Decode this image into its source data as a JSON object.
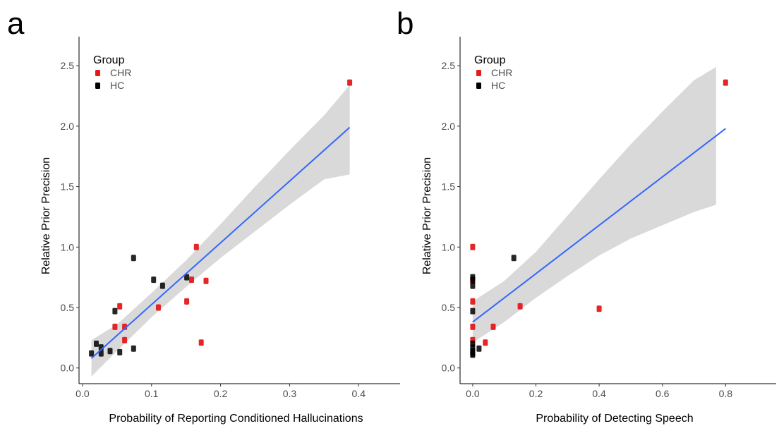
{
  "chart_data": [
    {
      "panel": "a",
      "type": "scatter",
      "title": "",
      "xlabel": "Probability of Reporting Conditioned Hallucinations",
      "ylabel": "Relative Prior Precision",
      "xlim": [
        -0.005,
        0.46
      ],
      "ylim": [
        -0.13,
        2.74
      ],
      "xticks": [
        0.0,
        0.1,
        0.2,
        0.3,
        0.4
      ],
      "xtick_labels": [
        "0.0",
        "0.1",
        "0.2",
        "0.3",
        "0.4"
      ],
      "yticks": [
        0.0,
        0.5,
        1.0,
        1.5,
        2.0,
        2.5
      ],
      "ytick_labels": [
        "0.0",
        "0.5",
        "1.0",
        "1.5",
        "2.0",
        "2.5"
      ],
      "grid": false,
      "legend": {
        "title": "Group",
        "position": "top-left",
        "entries": [
          {
            "label": "CHR",
            "color": "#e41a1c"
          },
          {
            "label": "HC",
            "color": "#000000"
          }
        ]
      },
      "series": [
        {
          "name": "CHR",
          "color": "#e41a1c",
          "points": [
            {
              "x": 0.387,
              "y": 2.36
            },
            {
              "x": 0.165,
              "y": 1.0
            },
            {
              "x": 0.179,
              "y": 0.72
            },
            {
              "x": 0.158,
              "y": 0.73
            },
            {
              "x": 0.151,
              "y": 0.55
            },
            {
              "x": 0.11,
              "y": 0.5
            },
            {
              "x": 0.054,
              "y": 0.51
            },
            {
              "x": 0.047,
              "y": 0.34
            },
            {
              "x": 0.061,
              "y": 0.34
            },
            {
              "x": 0.061,
              "y": 0.23
            },
            {
              "x": 0.172,
              "y": 0.21
            }
          ]
        },
        {
          "name": "HC",
          "color": "#000000",
          "points": [
            {
              "x": 0.074,
              "y": 0.91
            },
            {
              "x": 0.151,
              "y": 0.75
            },
            {
              "x": 0.103,
              "y": 0.73
            },
            {
              "x": 0.116,
              "y": 0.68
            },
            {
              "x": 0.047,
              "y": 0.47
            },
            {
              "x": 0.02,
              "y": 0.2
            },
            {
              "x": 0.027,
              "y": 0.17
            },
            {
              "x": 0.074,
              "y": 0.16
            },
            {
              "x": 0.04,
              "y": 0.14
            },
            {
              "x": 0.054,
              "y": 0.13
            },
            {
              "x": 0.013,
              "y": 0.12
            },
            {
              "x": 0.027,
              "y": 0.12
            }
          ]
        }
      ],
      "fit": {
        "x": [
          0.013,
          0.387
        ],
        "y": [
          0.08,
          1.99
        ]
      },
      "ci_band": {
        "x": [
          0.013,
          0.05,
          0.1,
          0.15,
          0.2,
          0.25,
          0.3,
          0.35,
          0.387
        ],
        "upper": [
          0.23,
          0.36,
          0.62,
          0.89,
          1.19,
          1.5,
          1.8,
          2.09,
          2.34
        ],
        "lower": [
          -0.07,
          0.14,
          0.42,
          0.67,
          0.91,
          1.13,
          1.35,
          1.56,
          1.6
        ]
      }
    },
    {
      "panel": "b",
      "type": "scatter",
      "title": "",
      "xlabel": "Probability of Detecting Speech",
      "ylabel": "Relative Prior Precision",
      "xlim": [
        -0.04,
        0.96
      ],
      "ylim": [
        -0.13,
        2.74
      ],
      "xticks": [
        0.0,
        0.2,
        0.4,
        0.6,
        0.8
      ],
      "xtick_labels": [
        "0.0",
        "0.2",
        "0.4",
        "0.6",
        "0.8"
      ],
      "yticks": [
        0.0,
        0.5,
        1.0,
        1.5,
        2.0,
        2.5
      ],
      "ytick_labels": [
        "0.0",
        "0.5",
        "1.0",
        "1.5",
        "2.0",
        "2.5"
      ],
      "grid": false,
      "legend": {
        "title": "Group",
        "position": "top-left",
        "entries": [
          {
            "label": "CHR",
            "color": "#e41a1c"
          },
          {
            "label": "HC",
            "color": "#000000"
          }
        ]
      },
      "series": [
        {
          "name": "CHR",
          "color": "#e41a1c",
          "points": [
            {
              "x": 0.8,
              "y": 2.36
            },
            {
              "x": 0.0,
              "y": 1.0
            },
            {
              "x": 0.0,
              "y": 0.73
            },
            {
              "x": 0.0,
              "y": 0.72
            },
            {
              "x": 0.0,
              "y": 0.55
            },
            {
              "x": 0.15,
              "y": 0.51
            },
            {
              "x": 0.4,
              "y": 0.49
            },
            {
              "x": 0.0,
              "y": 0.34
            },
            {
              "x": 0.065,
              "y": 0.34
            },
            {
              "x": 0.0,
              "y": 0.23
            },
            {
              "x": 0.04,
              "y": 0.21
            }
          ]
        },
        {
          "name": "HC",
          "color": "#000000",
          "points": [
            {
              "x": 0.13,
              "y": 0.91
            },
            {
              "x": 0.0,
              "y": 0.75
            },
            {
              "x": 0.0,
              "y": 0.73
            },
            {
              "x": 0.0,
              "y": 0.68
            },
            {
              "x": 0.0,
              "y": 0.47
            },
            {
              "x": 0.0,
              "y": 0.2
            },
            {
              "x": 0.0,
              "y": 0.17
            },
            {
              "x": 0.02,
              "y": 0.16
            },
            {
              "x": 0.0,
              "y": 0.14
            },
            {
              "x": 0.0,
              "y": 0.13
            },
            {
              "x": 0.0,
              "y": 0.12
            },
            {
              "x": 0.0,
              "y": 0.11
            }
          ]
        }
      ],
      "fit": {
        "x": [
          0.0,
          0.8
        ],
        "y": [
          0.38,
          1.98
        ]
      },
      "ci_band": {
        "x": [
          0.0,
          0.1,
          0.2,
          0.3,
          0.4,
          0.5,
          0.6,
          0.7,
          0.77
        ],
        "upper": [
          0.55,
          0.72,
          0.96,
          1.26,
          1.56,
          1.85,
          2.12,
          2.38,
          2.49
        ],
        "lower": [
          0.21,
          0.38,
          0.58,
          0.76,
          0.93,
          1.07,
          1.18,
          1.29,
          1.35
        ]
      }
    }
  ]
}
